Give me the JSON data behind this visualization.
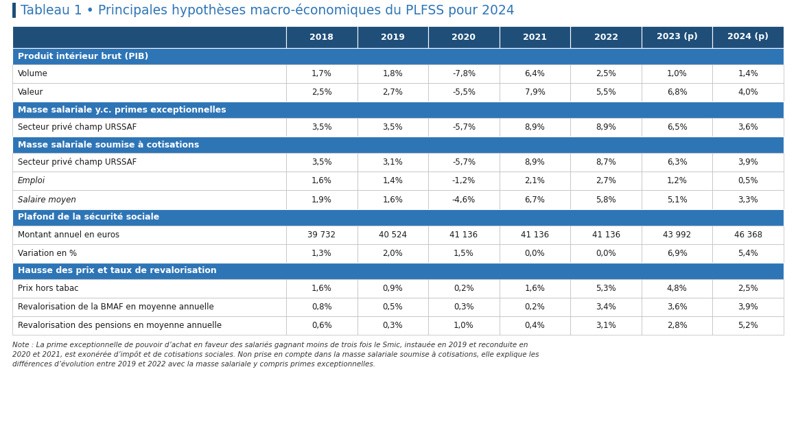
{
  "title": "Tableau 1 • Principales hypothèses macro-économiques du PLFSS pour 2024",
  "columns": [
    "",
    "2018",
    "2019",
    "2020",
    "2021",
    "2022",
    "2023 (p)",
    "2024 (p)"
  ],
  "header_bg": "#1F4E79",
  "header_fg": "#FFFFFF",
  "section_bg": "#2E75B6",
  "section_fg": "#FFFFFF",
  "border_color": "#BBBBBB",
  "title_color": "#2E75B6",
  "accent_color": "#1F4E79",
  "rows": [
    {
      "type": "section",
      "label": "Produit intérieur brut (PIB)",
      "values": [
        "",
        "",
        "",
        "",
        "",
        "",
        ""
      ]
    },
    {
      "type": "data",
      "label": "Volume",
      "italic": false,
      "values": [
        "1,7%",
        "1,8%",
        "-7,8%",
        "6,4%",
        "2,5%",
        "1,0%",
        "1,4%"
      ]
    },
    {
      "type": "data",
      "label": "Valeur",
      "italic": false,
      "values": [
        "2,5%",
        "2,7%",
        "-5,5%",
        "7,9%",
        "5,5%",
        "6,8%",
        "4,0%"
      ]
    },
    {
      "type": "section",
      "label": "Masse salariale y.c. primes exceptionnelles",
      "values": [
        "",
        "",
        "",
        "",
        "",
        "",
        ""
      ]
    },
    {
      "type": "data",
      "label": "Secteur privé champ URSSAF",
      "italic": false,
      "values": [
        "3,5%",
        "3,5%",
        "-5,7%",
        "8,9%",
        "8,9%",
        "6,5%",
        "3,6%"
      ]
    },
    {
      "type": "section",
      "label": "Masse salariale soumise à cotisations",
      "values": [
        "",
        "",
        "",
        "",
        "",
        "",
        ""
      ]
    },
    {
      "type": "data",
      "label": "Secteur privé champ URSSAF",
      "italic": false,
      "values": [
        "3,5%",
        "3,1%",
        "-5,7%",
        "8,9%",
        "8,7%",
        "6,3%",
        "3,9%"
      ]
    },
    {
      "type": "data",
      "label": "Emploi",
      "italic": true,
      "values": [
        "1,6%",
        "1,4%",
        "-1,2%",
        "2,1%",
        "2,7%",
        "1,2%",
        "0,5%"
      ]
    },
    {
      "type": "data",
      "label": "Salaire moyen",
      "italic": true,
      "values": [
        "1,9%",
        "1,6%",
        "-4,6%",
        "6,7%",
        "5,8%",
        "5,1%",
        "3,3%"
      ]
    },
    {
      "type": "section",
      "label": "Plafond de la sécurité sociale",
      "values": [
        "",
        "",
        "",
        "",
        "",
        "",
        ""
      ]
    },
    {
      "type": "data",
      "label": "Montant annuel en euros",
      "italic": false,
      "values": [
        "39 732",
        "40 524",
        "41 136",
        "41 136",
        "41 136",
        "43 992",
        "46 368"
      ]
    },
    {
      "type": "data",
      "label": "Variation en %",
      "italic": false,
      "values": [
        "1,3%",
        "2,0%",
        "1,5%",
        "0,0%",
        "0,0%",
        "6,9%",
        "5,4%"
      ]
    },
    {
      "type": "section",
      "label": "Hausse des prix et taux de revalorisation",
      "values": [
        "",
        "",
        "",
        "",
        "",
        "",
        ""
      ]
    },
    {
      "type": "data",
      "label": "Prix hors tabac",
      "italic": false,
      "values": [
        "1,6%",
        "0,9%",
        "0,2%",
        "1,6%",
        "5,3%",
        "4,8%",
        "2,5%"
      ]
    },
    {
      "type": "data",
      "label": "Revalorisation de la BMAF en moyenne annuelle",
      "italic": false,
      "values": [
        "0,8%",
        "0,5%",
        "0,3%",
        "0,2%",
        "3,4%",
        "3,6%",
        "3,9%"
      ]
    },
    {
      "type": "data",
      "label": "Revalorisation des pensions en moyenne annuelle",
      "italic": false,
      "values": [
        "0,6%",
        "0,3%",
        "1,0%",
        "0,4%",
        "3,1%",
        "2,8%",
        "5,2%"
      ]
    }
  ],
  "note_line1": "Note : La prime exceptionnelle de pouvoir d’achat en faveur des salariés gagnant moins de trois fois le Smic, instauée en 2019 et reconduite en",
  "note_line2": "2020 et 2021, est exonérée d’impôt et de cotisations sociales. Non prise en compte dans la masse salariale soumise à cotisations, elle explique les",
  "note_line3": "différences d’évolution entre 2019 et 2022 avec la masse salariale y compris primes exceptionnelles."
}
